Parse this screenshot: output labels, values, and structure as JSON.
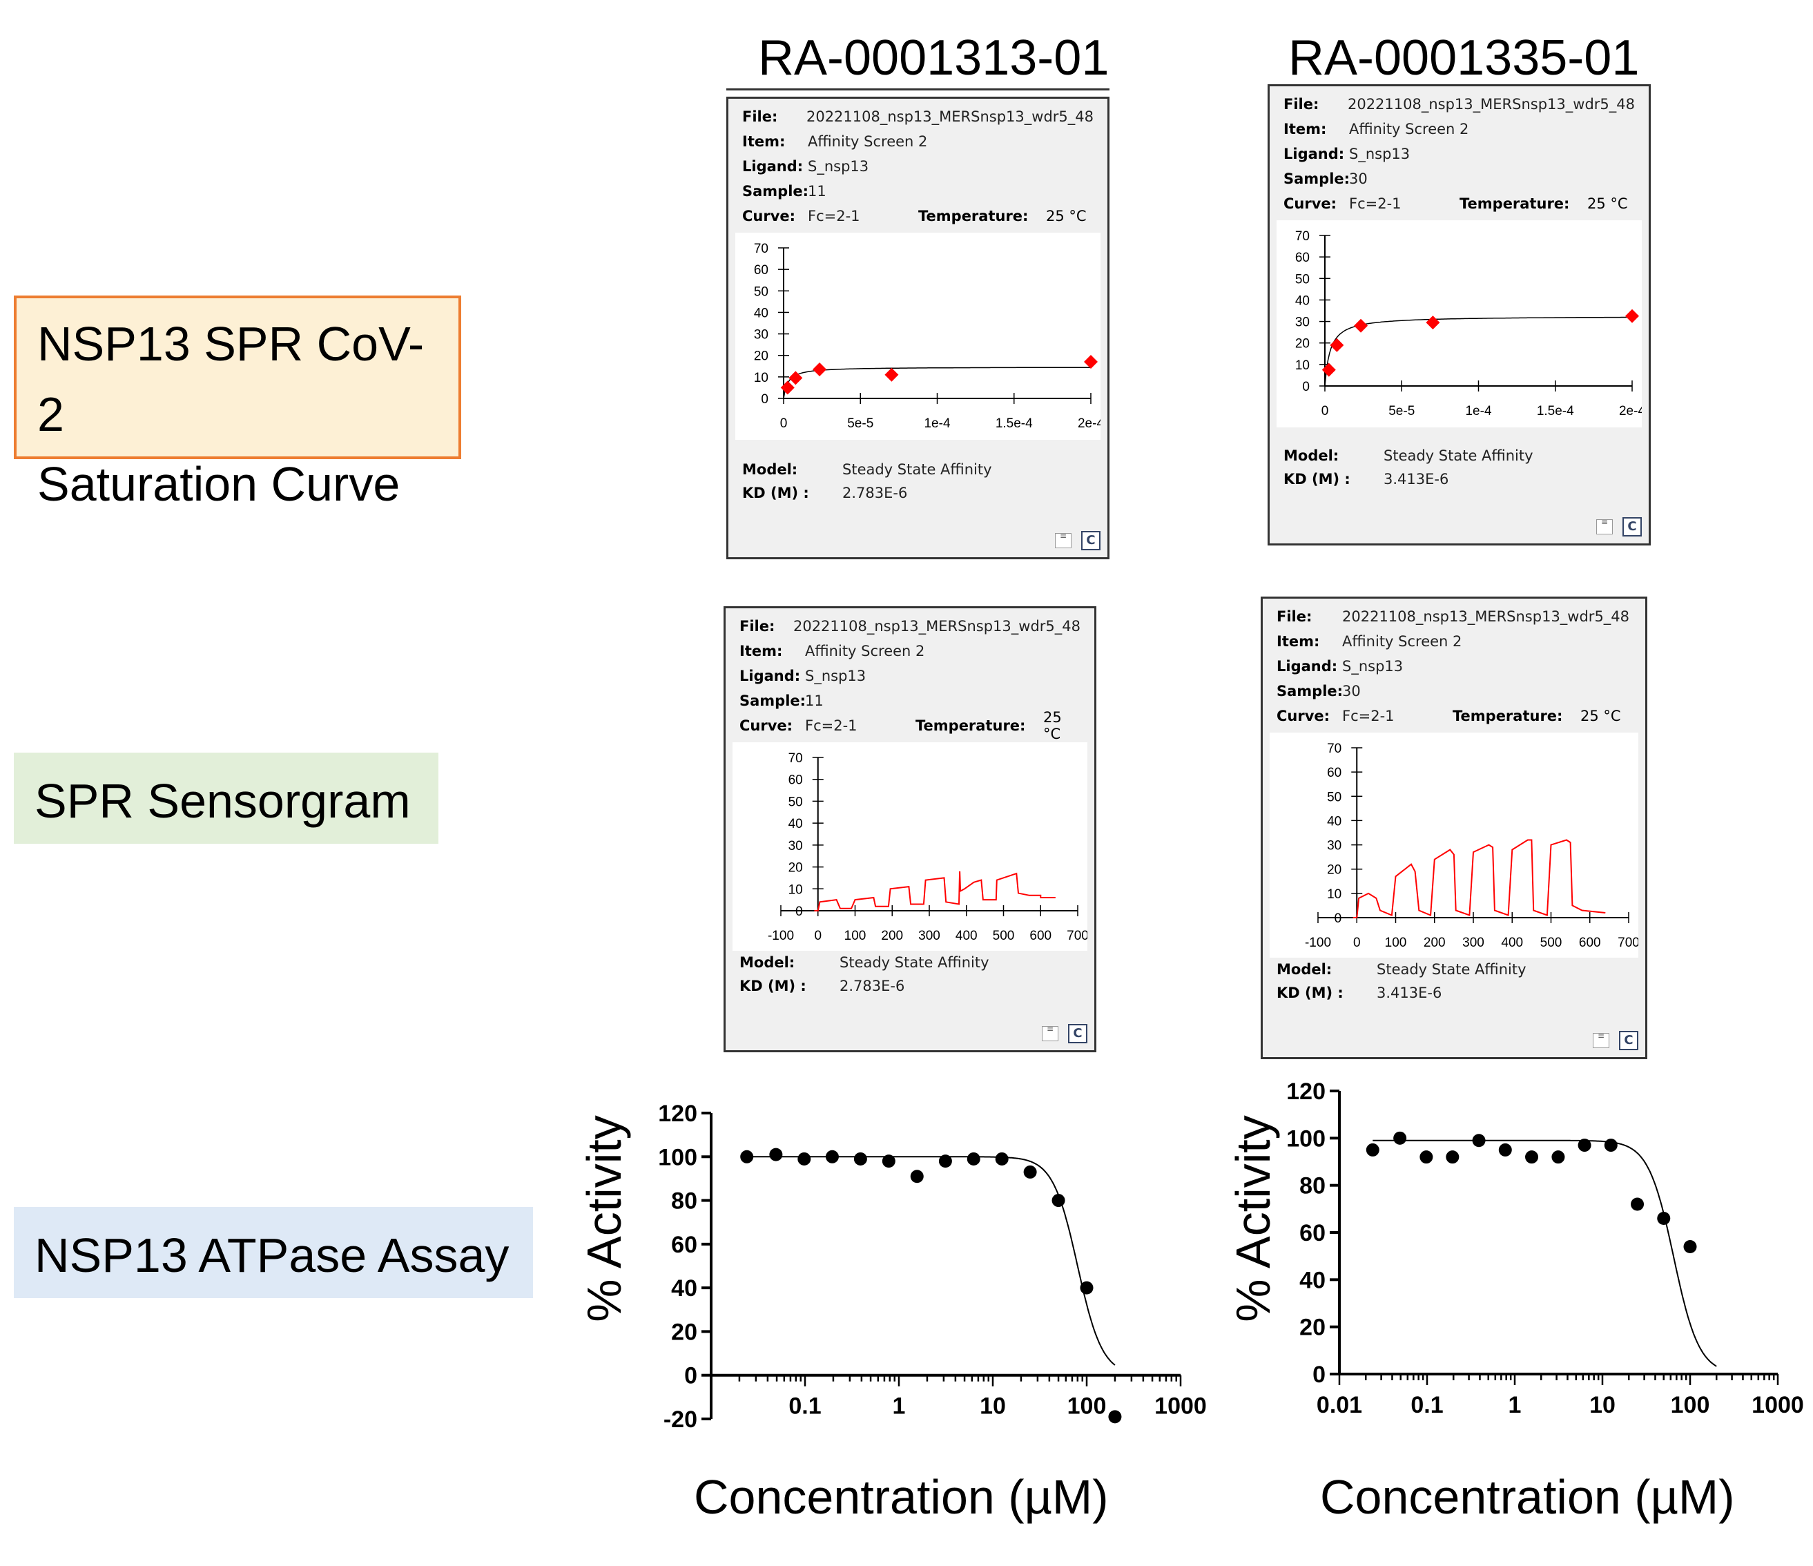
{
  "columns": [
    "RA-0001313-01",
    "RA-0001335-01"
  ],
  "rows": [
    {
      "label_lines": [
        "NSP13 SPR CoV-2",
        "Saturation Curve"
      ]
    },
    {
      "label_lines": [
        "SPR Sensorgram"
      ]
    },
    {
      "label_lines": [
        "NSP13 ATPase Assay"
      ]
    }
  ],
  "panel_labels": {
    "file": "File:",
    "item": "Item:",
    "ligand": "Ligand:",
    "sample": "Sample:",
    "curve": "Curve:",
    "temperature": "Temperature:",
    "model": "Model:",
    "kd": "KD (M) :",
    "note_icon": "note-icon",
    "c_icon": "C"
  },
  "spr": [
    {
      "file": "20221108_nsp13_MERSnsp13_wdr5_48",
      "item": "Affinity Screen 2",
      "ligand": "S_nsp13",
      "sample": "11",
      "curve": "Fc=2-1",
      "temperature": "25 °C",
      "model": "Steady State Affinity",
      "kd": "2.783E-6"
    },
    {
      "file": "20221108_nsp13_MERSnsp13_wdr5_48",
      "item": "Affinity Screen 2",
      "ligand": "S_nsp13",
      "sample": "30",
      "curve": "Fc=2-1",
      "temperature": "25 °C",
      "model": "Steady State Affinity",
      "kd": "3.413E-6"
    }
  ],
  "assay_axes": {
    "ylabel": "% Activity",
    "xlabel": "Concentration (µM)"
  },
  "chart_data": [
    {
      "type": "scatter",
      "id": "saturation-1",
      "xlim": [
        0,
        0.0002
      ],
      "ylim": [
        0,
        70
      ],
      "x_ticks": [
        0,
        5e-05,
        0.0001,
        0.00015,
        0.0002
      ],
      "x_tick_labels": [
        "0",
        "5e-5",
        "1e-4",
        "1.5e-4",
        "2e-4"
      ],
      "y_ticks": [
        0,
        10,
        20,
        30,
        40,
        50,
        60,
        70
      ],
      "points": [
        [
          2.6e-06,
          5
        ],
        [
          7.8e-06,
          9.5
        ],
        [
          2.34e-05,
          13.5
        ],
        [
          7.03e-05,
          11
        ],
        [
          0.0002,
          17
        ]
      ],
      "fit": {
        "model": "steady_state",
        "rmax": 14.6,
        "kd": 2.783e-06
      },
      "marker_color": "#ff0000"
    },
    {
      "type": "scatter",
      "id": "saturation-2",
      "xlim": [
        0,
        0.0002
      ],
      "ylim": [
        0,
        70
      ],
      "x_ticks": [
        0,
        5e-05,
        0.0001,
        0.00015,
        0.0002
      ],
      "x_tick_labels": [
        "0",
        "5e-5",
        "1e-4",
        "1.5e-4",
        "2e-4"
      ],
      "y_ticks": [
        0,
        10,
        20,
        30,
        40,
        50,
        60,
        70
      ],
      "points": [
        [
          2.6e-06,
          7.5
        ],
        [
          7.8e-06,
          19
        ],
        [
          2.34e-05,
          28
        ],
        [
          7.03e-05,
          29.5
        ],
        [
          0.0002,
          32.5
        ]
      ],
      "fit": {
        "model": "steady_state",
        "rmax": 32.5,
        "kd": 3.413e-06
      },
      "marker_color": "#ff0000"
    },
    {
      "type": "line",
      "id": "sensorgram-1",
      "xlim": [
        -100,
        700
      ],
      "ylim": [
        0,
        70
      ],
      "x_ticks": [
        -100,
        0,
        100,
        200,
        300,
        400,
        500,
        600,
        700
      ],
      "y_ticks": [
        0,
        10,
        20,
        30,
        40,
        50,
        60,
        70
      ],
      "series": [
        {
          "values": [
            [
              -10,
              0
            ],
            [
              0,
              0
            ],
            [
              5,
              4
            ],
            [
              50,
              5
            ],
            [
              60,
              1
            ],
            [
              90,
              1
            ],
            [
              100,
              5
            ],
            [
              150,
              6
            ],
            [
              155,
              2
            ],
            [
              190,
              2
            ],
            [
              195,
              10
            ],
            [
              245,
              11
            ],
            [
              250,
              3
            ],
            [
              285,
              3
            ],
            [
              290,
              14
            ],
            [
              340,
              15
            ],
            [
              345,
              4
            ],
            [
              380,
              3
            ],
            [
              382,
              18
            ],
            [
              384,
              9
            ],
            [
              395,
              10
            ],
            [
              420,
              13
            ],
            [
              440,
              14
            ],
            [
              445,
              5
            ],
            [
              480,
              5
            ],
            [
              482,
              14
            ],
            [
              535,
              17
            ],
            [
              540,
              8
            ],
            [
              570,
              7
            ],
            [
              600,
              7
            ],
            [
              600,
              6
            ],
            [
              640,
              6
            ]
          ]
        }
      ],
      "line_color": "#ff0000"
    },
    {
      "type": "line",
      "id": "sensorgram-2",
      "xlim": [
        -100,
        700
      ],
      "ylim": [
        0,
        70
      ],
      "x_ticks": [
        -100,
        0,
        100,
        200,
        300,
        400,
        500,
        600,
        700
      ],
      "y_ticks": [
        0,
        10,
        20,
        30,
        40,
        50,
        60,
        70
      ],
      "series": [
        {
          "values": [
            [
              -10,
              0
            ],
            [
              0,
              0
            ],
            [
              5,
              8
            ],
            [
              30,
              10
            ],
            [
              50,
              8
            ],
            [
              60,
              3
            ],
            [
              90,
              1
            ],
            [
              100,
              17
            ],
            [
              140,
              22
            ],
            [
              150,
              19
            ],
            [
              160,
              3
            ],
            [
              190,
              1
            ],
            [
              200,
              24
            ],
            [
              240,
              28
            ],
            [
              250,
              26
            ],
            [
              255,
              3
            ],
            [
              290,
              1
            ],
            [
              300,
              27
            ],
            [
              340,
              30
            ],
            [
              350,
              29
            ],
            [
              355,
              3
            ],
            [
              390,
              1
            ],
            [
              400,
              28
            ],
            [
              440,
              32
            ],
            [
              450,
              32
            ],
            [
              455,
              3
            ],
            [
              490,
              1
            ],
            [
              500,
              30
            ],
            [
              540,
              32
            ],
            [
              550,
              31
            ],
            [
              555,
              5
            ],
            [
              580,
              3
            ],
            [
              640,
              2
            ]
          ]
        }
      ],
      "line_color": "#ff0000"
    },
    {
      "type": "scatter",
      "id": "atpase-1",
      "x_scale": "log",
      "xlim": [
        0.01,
        1000
      ],
      "ylim": [
        -20,
        120
      ],
      "x_tick_labels": [
        "0.1",
        "1",
        "10",
        "100",
        "1000"
      ],
      "y_tick_labels": [
        "120",
        "100",
        "80",
        "60",
        "40",
        "20",
        "0",
        "-20"
      ],
      "points": [
        [
          0.024,
          100
        ],
        [
          0.049,
          101
        ],
        [
          0.098,
          99
        ],
        [
          0.195,
          100
        ],
        [
          0.39,
          99
        ],
        [
          0.78,
          98
        ],
        [
          1.56,
          91
        ],
        [
          3.13,
          98
        ],
        [
          6.25,
          99
        ],
        [
          12.5,
          99
        ],
        [
          25,
          93
        ],
        [
          50,
          80
        ],
        [
          100,
          40
        ],
        [
          200,
          -19
        ]
      ],
      "fit": {
        "model": "hill",
        "top": 100,
        "bottom": 0,
        "ic50": 80,
        "hill": 3.3
      }
    },
    {
      "type": "scatter",
      "id": "atpase-2",
      "x_scale": "log",
      "xlim": [
        0.01,
        1000
      ],
      "ylim": [
        0,
        120
      ],
      "x_tick_labels": [
        "0.01",
        "0.1",
        "1",
        "10",
        "100",
        "1000"
      ],
      "y_tick_labels": [
        "120",
        "100",
        "80",
        "60",
        "40",
        "20",
        "0"
      ],
      "points": [
        [
          0.024,
          95
        ],
        [
          0.049,
          100
        ],
        [
          0.098,
          92
        ],
        [
          0.195,
          92
        ],
        [
          0.39,
          99
        ],
        [
          0.78,
          95
        ],
        [
          1.56,
          92
        ],
        [
          3.13,
          92
        ],
        [
          6.25,
          97
        ],
        [
          12.5,
          97
        ],
        [
          25,
          72
        ],
        [
          50,
          66
        ],
        [
          100,
          54
        ]
      ],
      "fit": {
        "model": "hill",
        "top": 99,
        "bottom": 0,
        "ic50": 65,
        "hill": 3.0
      }
    }
  ]
}
